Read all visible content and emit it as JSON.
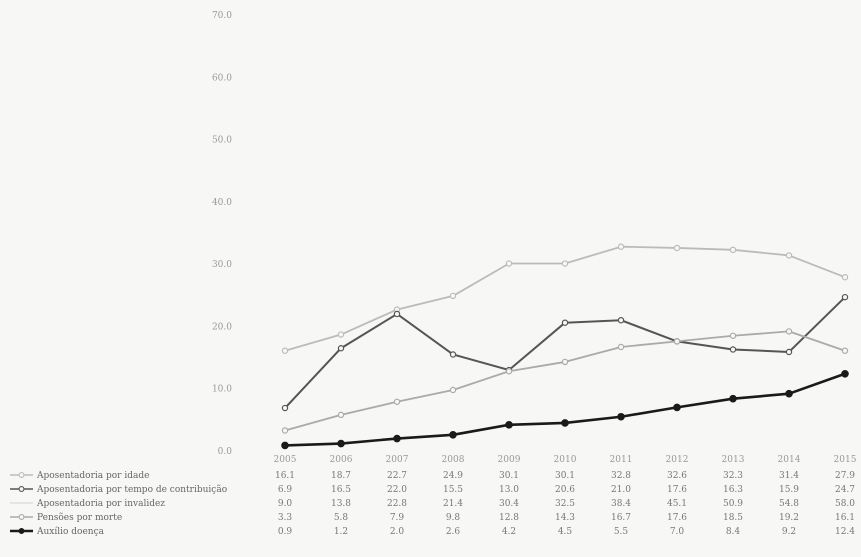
{
  "chart_data": {
    "type": "line",
    "title": "",
    "xlabel": "",
    "ylabel": "",
    "ylim": [
      0,
      70
    ],
    "y_ticks": [
      "0.0",
      "10.0",
      "20.0",
      "30.0",
      "40.0",
      "50.0",
      "60.0",
      "70.0"
    ],
    "categories": [
      "2005",
      "2006",
      "2007",
      "2008",
      "2009",
      "2010",
      "2011",
      "2012",
      "2013",
      "2014",
      "2015"
    ],
    "series": [
      {
        "name": "Aposentadoria por idade",
        "color": "#bbbbbb",
        "marker": "o",
        "values": [
          16.1,
          18.7,
          22.7,
          24.9,
          30.1,
          30.1,
          32.8,
          32.6,
          32.3,
          31.4,
          27.9
        ],
        "labels": [
          "16.1",
          "18.7",
          "22.7",
          "24.9",
          "30.1",
          "30.1",
          "32.8",
          "32.6",
          "32.3",
          "31.4",
          "27.9"
        ]
      },
      {
        "name": "Aposentadoria por tempo de contribuição",
        "color": "#555555",
        "marker": "o",
        "values": [
          6.9,
          16.5,
          22.0,
          15.5,
          13.0,
          20.6,
          21.0,
          17.6,
          16.3,
          15.9,
          24.7
        ],
        "labels": [
          "6.9",
          "16.5",
          "22.0",
          "15.5",
          "13.0",
          "20.6",
          "21.0",
          "17.6",
          "16.3",
          "15.9",
          "24.7"
        ]
      },
      {
        "name": "Aposentadoria por invalidez",
        "color": "#dddddd",
        "marker": "",
        "values": [
          9.0,
          13.8,
          22.8,
          21.4,
          30.4,
          32.5,
          38.4,
          45.1,
          50.9,
          54.8,
          58.0
        ],
        "labels": [
          "9.0",
          "13.8",
          "22.8",
          "21.4",
          "30.4",
          "32.5",
          "38.4",
          "45.1",
          "50.9",
          "54.8",
          "58.0"
        ]
      },
      {
        "name": "Pensões por morte",
        "color": "#aaaaaa",
        "marker": "o",
        "values": [
          3.3,
          5.8,
          7.9,
          9.8,
          12.8,
          14.3,
          16.7,
          17.6,
          18.5,
          19.2,
          16.1
        ],
        "labels": [
          "3.3",
          "5.8",
          "7.9",
          "9.8",
          "12.8",
          "14.3",
          "16.7",
          "17.6",
          "18.5",
          "19.2",
          "16.1"
        ]
      },
      {
        "name": "Auxílio doença",
        "color": "#1a1a1a",
        "marker": "o",
        "values": [
          0.9,
          1.2,
          2.0,
          2.6,
          4.2,
          4.5,
          5.5,
          7.0,
          8.4,
          9.2,
          12.4
        ],
        "labels": [
          "0.9",
          "1.2",
          "2.0",
          "2.6",
          "4.2",
          "4.5",
          "5.5",
          "7.0",
          "8.4",
          "9.2",
          "12.4"
        ]
      }
    ]
  }
}
